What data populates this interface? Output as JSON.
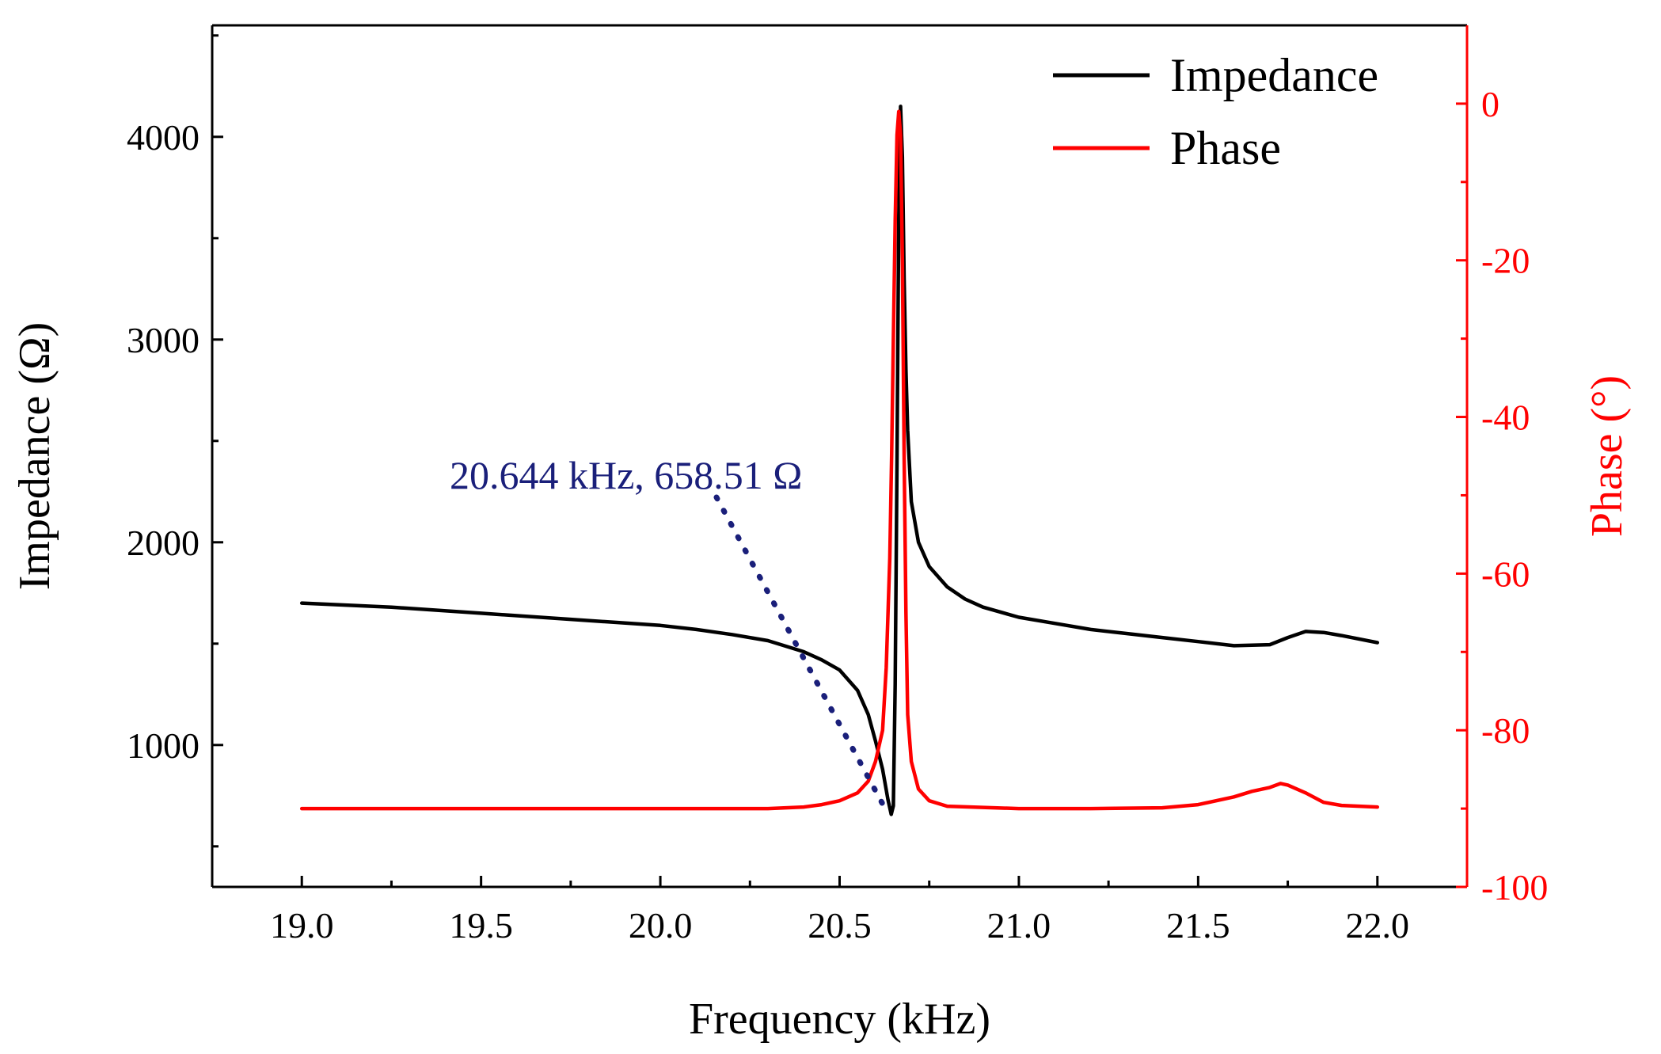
{
  "chart_data": {
    "type": "line",
    "xlabel": "Frequency (kHz)",
    "ylabel_left": "Impedance (Ω)",
    "ylabel_right": "Phase (°)",
    "xlim": [
      18.75,
      22.25
    ],
    "ylim_left": [
      300,
      4550
    ],
    "ylim_right": [
      -100,
      10
    ],
    "x_ticks": [
      19.0,
      19.5,
      20.0,
      20.5,
      21.0,
      21.5,
      22.0
    ],
    "x_tick_labels": [
      "19.0",
      "19.5",
      "20.0",
      "20.5",
      "21.0",
      "21.5",
      "22.0"
    ],
    "y_left_ticks": [
      1000,
      2000,
      3000,
      4000
    ],
    "y_left_tick_labels": [
      "1000",
      "2000",
      "3000",
      "4000"
    ],
    "y_right_ticks": [
      0,
      -20,
      -40,
      -60,
      -80,
      -100
    ],
    "y_right_tick_labels": [
      "0",
      "-20",
      "-40",
      "-60",
      "-80",
      "-100"
    ],
    "legend_position": "top-right",
    "grid": false,
    "series": [
      {
        "name": "Impedance",
        "axis": "left",
        "color": "#000000",
        "points": [
          [
            19.0,
            1700
          ],
          [
            19.25,
            1680
          ],
          [
            19.5,
            1650
          ],
          [
            19.75,
            1620
          ],
          [
            20.0,
            1590
          ],
          [
            20.1,
            1570
          ],
          [
            20.2,
            1545
          ],
          [
            20.3,
            1515
          ],
          [
            20.4,
            1460
          ],
          [
            20.45,
            1420
          ],
          [
            20.5,
            1370
          ],
          [
            20.55,
            1270
          ],
          [
            20.58,
            1150
          ],
          [
            20.6,
            1020
          ],
          [
            20.62,
            880
          ],
          [
            20.635,
            730
          ],
          [
            20.644,
            658
          ],
          [
            20.65,
            700
          ],
          [
            20.655,
            1300
          ],
          [
            20.66,
            2400
          ],
          [
            20.665,
            3600
          ],
          [
            20.67,
            4150
          ],
          [
            20.675,
            3900
          ],
          [
            20.68,
            3300
          ],
          [
            20.685,
            2850
          ],
          [
            20.69,
            2550
          ],
          [
            20.7,
            2200
          ],
          [
            20.72,
            2000
          ],
          [
            20.75,
            1880
          ],
          [
            20.8,
            1780
          ],
          [
            20.85,
            1720
          ],
          [
            20.9,
            1680
          ],
          [
            21.0,
            1630
          ],
          [
            21.1,
            1600
          ],
          [
            21.2,
            1570
          ],
          [
            21.3,
            1550
          ],
          [
            21.4,
            1530
          ],
          [
            21.5,
            1510
          ],
          [
            21.6,
            1490
          ],
          [
            21.7,
            1495
          ],
          [
            21.75,
            1530
          ],
          [
            21.8,
            1560
          ],
          [
            21.85,
            1555
          ],
          [
            21.9,
            1540
          ],
          [
            22.0,
            1505
          ]
        ]
      },
      {
        "name": "Phase",
        "axis": "right",
        "color": "#ff0000",
        "points": [
          [
            19.0,
            -90
          ],
          [
            19.5,
            -90
          ],
          [
            20.0,
            -90
          ],
          [
            20.3,
            -90
          ],
          [
            20.4,
            -89.8
          ],
          [
            20.45,
            -89.5
          ],
          [
            20.5,
            -89
          ],
          [
            20.55,
            -88
          ],
          [
            20.58,
            -86.5
          ],
          [
            20.6,
            -84
          ],
          [
            20.62,
            -80
          ],
          [
            20.63,
            -72
          ],
          [
            20.64,
            -58
          ],
          [
            20.645,
            -45
          ],
          [
            20.65,
            -30
          ],
          [
            20.655,
            -15
          ],
          [
            20.66,
            -4
          ],
          [
            20.665,
            -1
          ],
          [
            20.67,
            -4
          ],
          [
            20.675,
            -20
          ],
          [
            20.68,
            -45
          ],
          [
            20.685,
            -65
          ],
          [
            20.69,
            -78
          ],
          [
            20.7,
            -84
          ],
          [
            20.72,
            -87.5
          ],
          [
            20.75,
            -89
          ],
          [
            20.8,
            -89.7
          ],
          [
            21.0,
            -90
          ],
          [
            21.2,
            -90
          ],
          [
            21.4,
            -89.9
          ],
          [
            21.5,
            -89.5
          ],
          [
            21.6,
            -88.5
          ],
          [
            21.65,
            -87.8
          ],
          [
            21.7,
            -87.3
          ],
          [
            21.73,
            -86.8
          ],
          [
            21.75,
            -87
          ],
          [
            21.8,
            -88
          ],
          [
            21.85,
            -89.2
          ],
          [
            21.9,
            -89.6
          ],
          [
            22.0,
            -89.8
          ]
        ]
      }
    ],
    "annotation": {
      "text": "20.644 kHz, 658.51 Ω",
      "x": 20.644,
      "y": 658.51,
      "color": "#1a1f7a"
    }
  }
}
